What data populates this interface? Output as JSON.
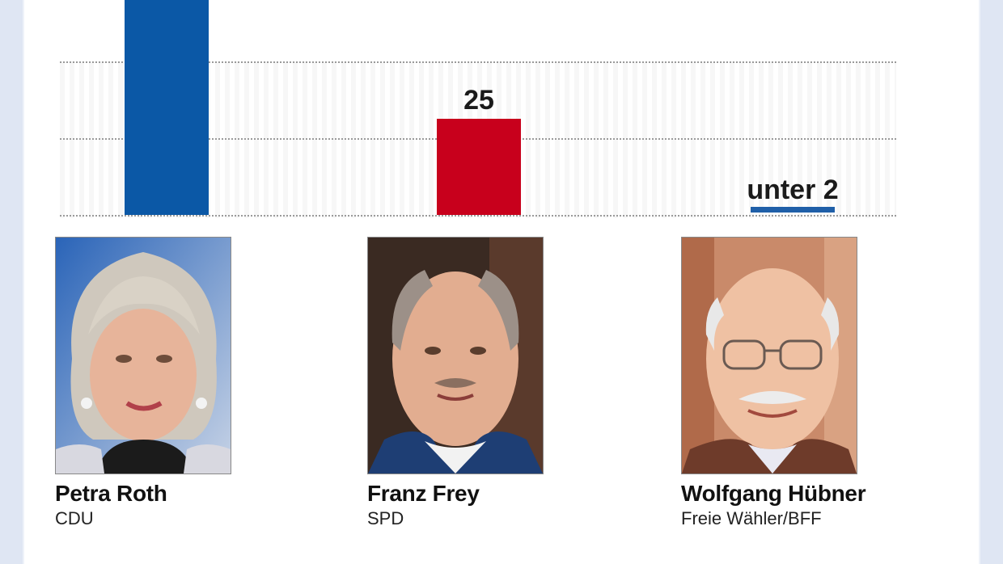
{
  "chart_data": {
    "type": "bar",
    "categories": [
      "Petra Roth",
      "Franz Frey",
      "Wolfgang Hübner"
    ],
    "values": [
      null,
      25,
      1.5
    ],
    "value_labels": [
      "",
      "25",
      "unter 2"
    ],
    "colors": [
      "#0b58a6",
      "#c8001c",
      "#1f5fa8"
    ],
    "ylim": [
      0,
      50
    ],
    "grid": true
  },
  "candidates": [
    {
      "name": "Petra Roth",
      "party": "CDU",
      "photo_icon": "portrait-woman-icon"
    },
    {
      "name": "Franz Frey",
      "party": "SPD",
      "photo_icon": "portrait-man-icon"
    },
    {
      "name": "Wolfgang Hübner",
      "party": "Freie Wähler/BFF",
      "photo_icon": "portrait-man-glasses-icon"
    }
  ]
}
